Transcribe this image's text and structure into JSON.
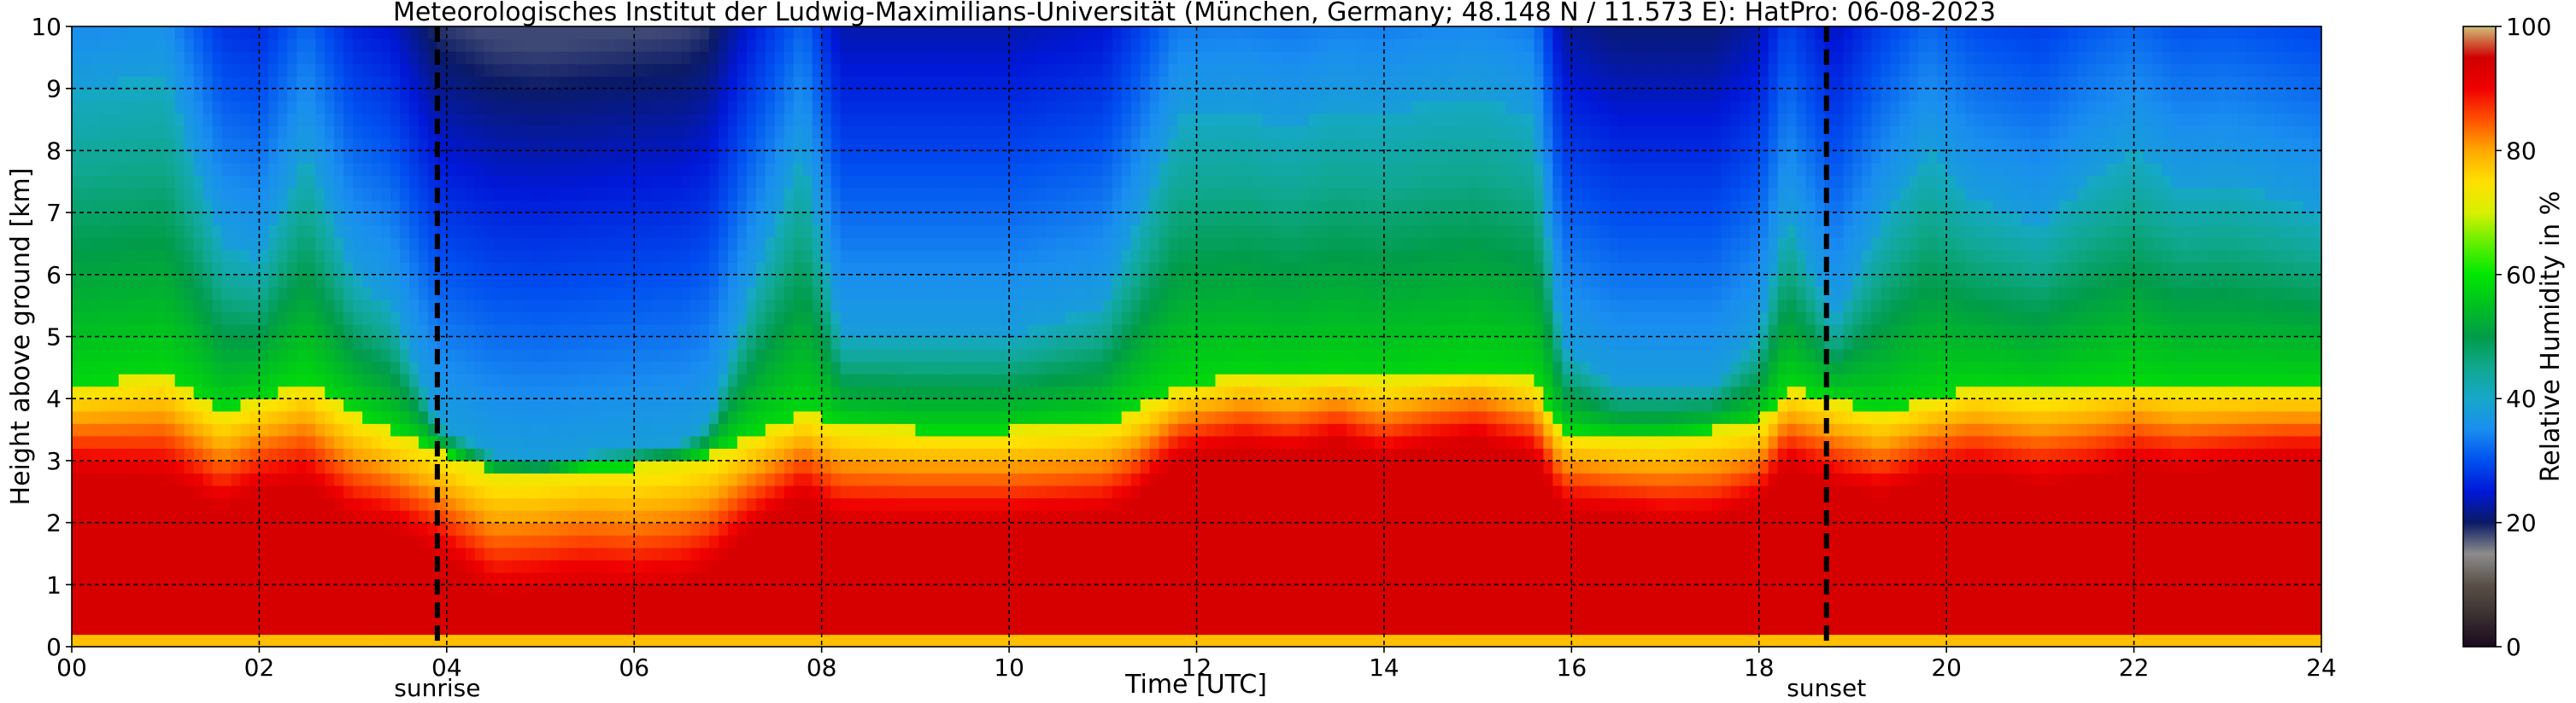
{
  "chart_data": {
    "type": "heatmap",
    "title": "Meteorologisches Institut der Ludwig-Maximilians-Universität (München, Germany; 48.148 N / 11.573 E):    HatPro: 06-08-2023",
    "xlabel": "Time [UTC]",
    "ylabel": "Height above ground [km]",
    "xlim": [
      0,
      24
    ],
    "ylim": [
      0,
      10
    ],
    "x_ticks": [
      "00",
      "02",
      "04",
      "06",
      "08",
      "10",
      "12",
      "14",
      "16",
      "18",
      "20",
      "22",
      "24"
    ],
    "y_ticks": [
      "0",
      "1",
      "2",
      "3",
      "4",
      "5",
      "6",
      "7",
      "8",
      "9",
      "10"
    ],
    "grid": true,
    "colorbar": {
      "label": "Relative Humidity in %",
      "range": [
        0,
        100
      ],
      "ticks": [
        "0",
        "20",
        "40",
        "60",
        "80",
        "100"
      ],
      "colors": [
        "#1a0a1e",
        "#3a3030",
        "#5a5048",
        "#8c8c8c",
        "#0a1a66",
        "#0018d8",
        "#0050f0",
        "#1a8ef0",
        "#16a8c8",
        "#10a890",
        "#009c48",
        "#00c020",
        "#00e800",
        "#60f000",
        "#d8f000",
        "#ffe000",
        "#ffa800",
        "#ff5000",
        "#f00000",
        "#d00000",
        "#d0c078"
      ]
    },
    "annotations": [
      {
        "text": "sunrise",
        "x": 3.9
      },
      {
        "text": "sunset",
        "x": 18.72
      }
    ],
    "rh_profile": {
      "time_h": [
        0,
        1,
        1.6,
        2,
        2.5,
        3,
        3.4,
        3.9,
        4.5,
        5,
        5.5,
        6,
        6.5,
        6.8,
        7.2,
        7.8,
        8.2,
        9,
        10,
        11,
        11.3,
        11.8,
        12.5,
        13,
        13.5,
        14,
        14.5,
        15,
        15.6,
        15.9,
        16.5,
        17,
        17.5,
        18,
        18.3,
        18.8,
        19.3,
        19.8,
        20.3,
        21,
        21.5,
        22,
        22.5,
        23,
        23.6,
        24
      ],
      "h_red_top_km": [
        2.8,
        2.7,
        2.2,
        2.5,
        2.6,
        2.0,
        1.9,
        1.5,
        0.8,
        0.9,
        1.0,
        0.9,
        1.0,
        1.2,
        1.8,
        2.4,
        2.0,
        2.0,
        2.0,
        2.1,
        2.3,
        3.0,
        3.2,
        3.1,
        3.3,
        3.0,
        3.2,
        3.3,
        3.0,
        2.2,
        2.1,
        2.0,
        2.0,
        2.3,
        2.9,
        2.6,
        2.4,
        2.7,
        2.8,
        2.6,
        2.7,
        2.9,
        2.8,
        2.9,
        3.0,
        3.0
      ],
      "h_yellow_top_km": [
        4.2,
        4.4,
        3.8,
        4.0,
        4.3,
        3.8,
        3.5,
        3.2,
        2.8,
        2.8,
        2.9,
        2.9,
        3.0,
        3.1,
        3.4,
        3.8,
        3.6,
        3.5,
        3.5,
        3.6,
        3.8,
        4.2,
        4.4,
        4.3,
        4.4,
        4.3,
        4.4,
        4.5,
        4.3,
        3.5,
        3.4,
        3.4,
        3.5,
        3.6,
        4.2,
        4.0,
        3.8,
        4.0,
        4.2,
        4.1,
        4.2,
        4.3,
        4.2,
        4.2,
        4.2,
        4.2
      ],
      "h_green_top_km": [
        9.0,
        9.2,
        6.5,
        6.2,
        8.0,
        6.0,
        5.5,
        3.6,
        3.1,
        3.0,
        3.1,
        3.2,
        3.3,
        3.6,
        5.5,
        8.0,
        5.0,
        5.0,
        5.0,
        5.5,
        6.5,
        8.5,
        8.6,
        8.4,
        8.7,
        8.6,
        8.8,
        8.9,
        8.5,
        4.8,
        4.2,
        4.2,
        4.2,
        5.0,
        7.0,
        5.2,
        6.8,
        8.0,
        7.2,
        6.8,
        7.5,
        8.0,
        7.4,
        7.5,
        7.2,
        7.0
      ]
    }
  }
}
